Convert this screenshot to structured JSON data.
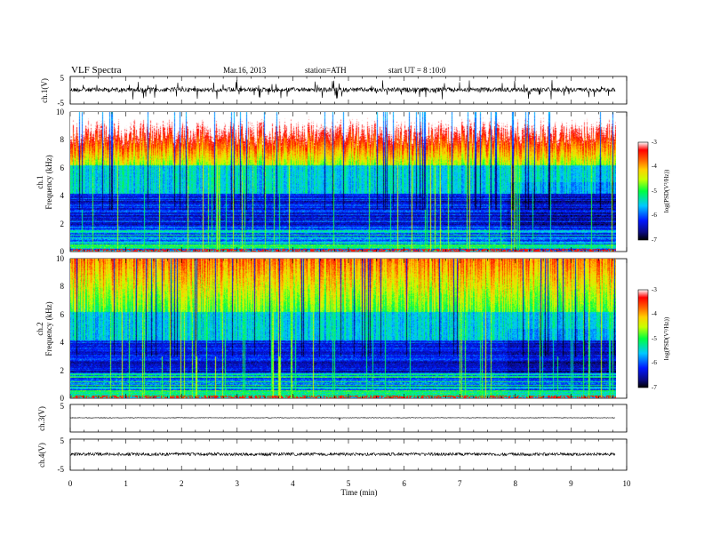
{
  "header": {
    "title": "VLF  Spectra",
    "date": "Mar.16, 2013",
    "station": "station=ATH",
    "start": "start  UT  =   8 :10:0"
  },
  "colorbar": {
    "label": "log(PSD(V²/Hz))",
    "ticks": [
      "-3",
      "-4",
      "-5",
      "-6",
      "-7"
    ]
  },
  "chart_data": [
    {
      "type": "line",
      "panel": "ch1-waveform",
      "ylabel": "ch.1(V)",
      "ylim": [
        -5,
        5
      ],
      "y_ticks": [
        "5",
        "-5"
      ],
      "baseline": 0
    },
    {
      "type": "heatmap",
      "panel": "ch1-spectrogram",
      "ylabel": [
        "ch.1",
        "Frequency (kHz)"
      ],
      "ylim": [
        0,
        10
      ],
      "y_ticks": [
        "0",
        "2",
        "4",
        "6",
        "8",
        "10"
      ],
      "x_range_min": [
        0,
        9.8
      ],
      "color_scale": {
        "min": -7,
        "max": -3,
        "unit": "log(PSD(V²/Hz))"
      }
    },
    {
      "type": "heatmap",
      "panel": "ch2-spectrogram",
      "ylabel": [
        "ch.2",
        "Frequency (kHz)"
      ],
      "ylim": [
        0,
        10
      ],
      "y_ticks": [
        "0",
        "2",
        "4",
        "6",
        "8",
        "10"
      ],
      "x_range_min": [
        0,
        9.8
      ],
      "color_scale": {
        "min": -7,
        "max": -3,
        "unit": "log(PSD(V²/Hz))"
      }
    },
    {
      "type": "line",
      "panel": "ch3-waveform",
      "ylabel": "ch.3(V)",
      "ylim": [
        -5,
        5
      ],
      "y_ticks": [
        "5",
        "-5"
      ],
      "baseline": 0
    },
    {
      "type": "line",
      "panel": "ch4-waveform",
      "ylabel": "ch.4(V)",
      "ylim": [
        -5,
        5
      ],
      "y_ticks": [
        "5",
        "-5"
      ],
      "baseline": 0
    }
  ],
  "x_axis": {
    "label": "Time  (min)",
    "ticks": [
      "0",
      "1",
      "2",
      "3",
      "4",
      "5",
      "6",
      "7",
      "8",
      "9",
      "10"
    ],
    "min": 0,
    "max": 10
  }
}
